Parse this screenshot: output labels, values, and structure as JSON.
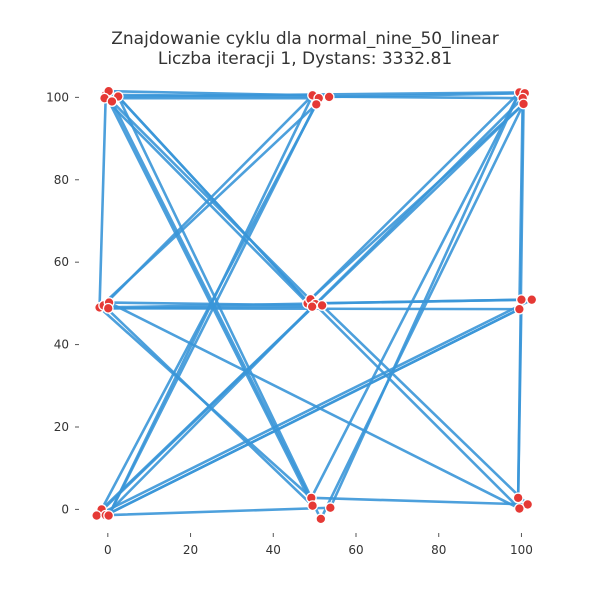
{
  "chart_data": {
    "type": "line",
    "title": "Znajdowanie cyklu dla normal_nine_50_linear",
    "subtitle": "Liczba iteracji 1, Dystans: 3332.81",
    "xlabel": "",
    "ylabel": "",
    "xlim": [
      -6,
      104
    ],
    "ylim": [
      -5,
      103
    ],
    "x_ticks": [
      0,
      20,
      40,
      60,
      80,
      100
    ],
    "y_ticks": [
      0,
      20,
      40,
      60,
      80,
      100
    ],
    "grid": false,
    "colors": {
      "path": "#3a96d8",
      "point_fill": "#e53935",
      "point_edge": "#ffffff",
      "text": "#333333"
    },
    "points": [
      {
        "x": -0.5,
        "y": 100.6
      },
      {
        "x": 0.2,
        "y": 101.5
      },
      {
        "x": 2.5,
        "y": 100.2
      },
      {
        "x": -0.8,
        "y": 99.8
      },
      {
        "x": 1.0,
        "y": 99.0
      },
      {
        "x": 49.5,
        "y": 100.5
      },
      {
        "x": 51.0,
        "y": 99.8
      },
      {
        "x": 53.5,
        "y": 100.1
      },
      {
        "x": 50.4,
        "y": 98.3
      },
      {
        "x": 99.5,
        "y": 101.2
      },
      {
        "x": 100.8,
        "y": 101.0
      },
      {
        "x": 100.3,
        "y": 99.8
      },
      {
        "x": 100.5,
        "y": 98.4
      },
      {
        "x": -2.0,
        "y": 49.0
      },
      {
        "x": -1.0,
        "y": 49.5
      },
      {
        "x": 0.3,
        "y": 50.2
      },
      {
        "x": 0.1,
        "y": 48.8
      },
      {
        "x": 48.3,
        "y": 50.0
      },
      {
        "x": 49.0,
        "y": 51.0
      },
      {
        "x": 50.2,
        "y": 49.8
      },
      {
        "x": 49.4,
        "y": 49.2
      },
      {
        "x": 51.8,
        "y": 49.5
      },
      {
        "x": 100.0,
        "y": 50.9
      },
      {
        "x": 102.5,
        "y": 50.9
      },
      {
        "x": 99.5,
        "y": 48.6
      },
      {
        "x": -1.5,
        "y": 0.0
      },
      {
        "x": -2.7,
        "y": -1.5
      },
      {
        "x": -0.5,
        "y": -1.4
      },
      {
        "x": 0.2,
        "y": -1.5
      },
      {
        "x": 49.2,
        "y": 2.8
      },
      {
        "x": 49.5,
        "y": 0.9
      },
      {
        "x": 53.8,
        "y": 0.4
      },
      {
        "x": 51.5,
        "y": -2.3
      },
      {
        "x": 99.2,
        "y": 2.8
      },
      {
        "x": 101.5,
        "y": 1.2
      },
      {
        "x": 99.5,
        "y": 0.2
      }
    ],
    "path": [
      [
        0.2,
        101.5
      ],
      [
        49.5,
        100.5
      ],
      [
        53.5,
        100.1
      ],
      [
        100.8,
        101.0
      ],
      [
        100.3,
        99.8
      ],
      [
        99.5,
        48.6
      ],
      [
        -0.5,
        -1.4
      ],
      [
        49.4,
        49.2
      ],
      [
        2.5,
        100.2
      ],
      [
        99.5,
        101.2
      ],
      [
        49.0,
        51.0
      ],
      [
        100.5,
        98.4
      ],
      [
        99.2,
        2.8
      ],
      [
        100.0,
        50.9
      ],
      [
        -2.0,
        49.0
      ],
      [
        50.4,
        98.3
      ],
      [
        -1.5,
        0.0
      ],
      [
        50.2,
        49.8
      ],
      [
        100.3,
        99.8
      ],
      [
        -0.5,
        100.6
      ],
      [
        49.5,
        0.9
      ],
      [
        -1.0,
        49.5
      ],
      [
        49.5,
        100.5
      ],
      [
        0.2,
        -1.5
      ],
      [
        51.0,
        99.8
      ],
      [
        -0.8,
        99.8
      ],
      [
        48.3,
        50.0
      ],
      [
        102.5,
        50.9
      ],
      [
        -2.7,
        -1.5
      ],
      [
        100.5,
        98.4
      ],
      [
        51.5,
        -2.3
      ],
      [
        1.0,
        99.0
      ],
      [
        99.5,
        0.2
      ],
      [
        0.3,
        50.2
      ],
      [
        51.8,
        49.5
      ],
      [
        101.5,
        1.2
      ],
      [
        49.2,
        2.8
      ],
      [
        2.5,
        100.2
      ],
      [
        49.4,
        49.2
      ],
      [
        0.1,
        48.8
      ],
      [
        99.5,
        48.6
      ],
      [
        -0.5,
        -1.4
      ],
      [
        53.8,
        0.4
      ],
      [
        99.5,
        101.2
      ],
      [
        49.2,
        2.8
      ],
      [
        -2.0,
        49.0
      ],
      [
        -0.5,
        100.6
      ],
      [
        0.2,
        101.5
      ]
    ]
  }
}
